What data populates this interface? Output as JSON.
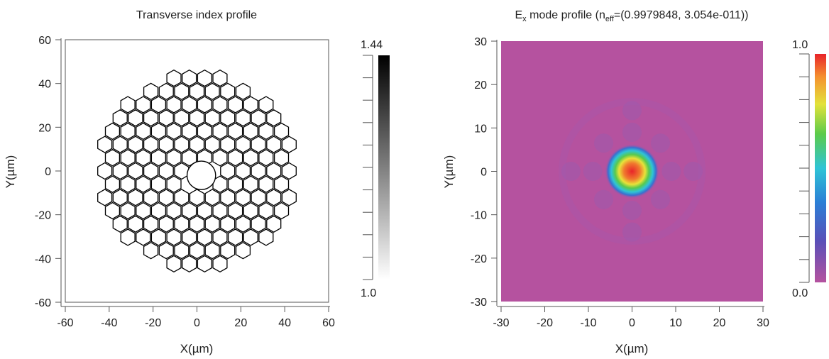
{
  "chart_data": [
    {
      "type": "heatmap",
      "title": "Transverse index profile",
      "xlabel": "X(µm)",
      "ylabel": "Y(µm)",
      "xlim": [
        -60,
        60
      ],
      "ylim": [
        -60,
        60
      ],
      "xticks": [
        "-60",
        "-40",
        "-20",
        "0",
        "20",
        "40",
        "60"
      ],
      "yticks": [
        "60",
        "40",
        "20",
        "0",
        "-20",
        "-40",
        "-60"
      ],
      "colormap": "grayscale",
      "colorbar": {
        "max_label": "1.44",
        "min_label": "1.0",
        "max": 1.44,
        "min": 1.0
      },
      "structure": {
        "description_kind": "hollow-core photonic crystal fiber, honeycomb cladding",
        "outer_radius_um": 45,
        "core_radius_um": 6.5,
        "core_center_um": [
          2,
          -2
        ],
        "hole_pitch_um": 7,
        "background_index": 1.0,
        "wall_index": 1.44
      }
    },
    {
      "type": "heatmap",
      "title_main": "E",
      "title_sub1": "x",
      "title_mid": " mode profile (n",
      "title_sub2": "eff",
      "title_end": "=(0.9979848, 3.054e-011))",
      "xlabel": "X(µm)",
      "ylabel": "Y(µm)",
      "xlim": [
        -30,
        30
      ],
      "ylim": [
        -30,
        30
      ],
      "xticks": [
        "-30",
        "-20",
        "-10",
        "0",
        "10",
        "20",
        "30"
      ],
      "yticks": [
        "30",
        "20",
        "10",
        "0",
        "-10",
        "-20",
        "-30"
      ],
      "colormap": "rainbow",
      "colorbar": {
        "max_label": "1.0",
        "min_label": "0.0",
        "max": 1.0,
        "min": 0.0
      },
      "mode": {
        "center_um": [
          0,
          0
        ],
        "radius_um": 5,
        "peak": 1.0,
        "background": 0.0
      }
    }
  ]
}
